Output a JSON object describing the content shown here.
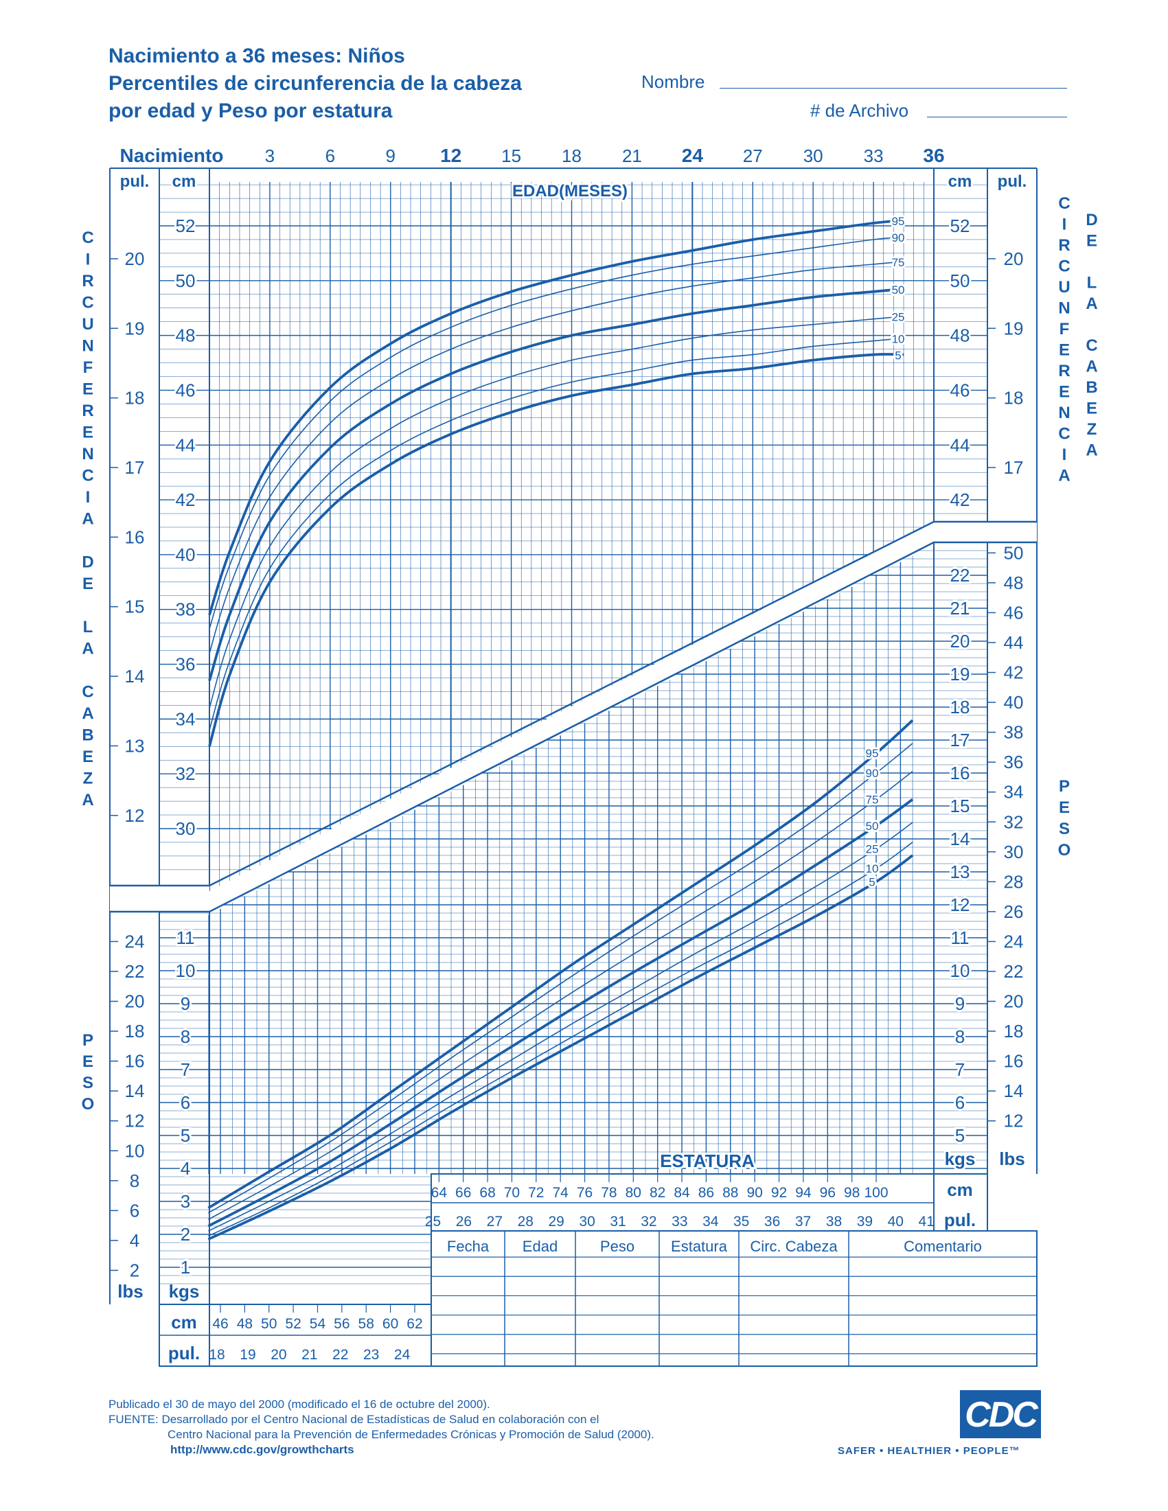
{
  "title": {
    "line1": "Nacimiento a 36 meses: Niños",
    "line2": "Percentiles de circunferencia de la cabeza",
    "line3": "por edad y Peso por estatura"
  },
  "fields": {
    "name_label": "Nombre",
    "record_label": "# de Archivo"
  },
  "age_axis": {
    "label": "EDAD(MESES)",
    "ticks": [
      "Nacimiento",
      "3",
      "6",
      "9",
      "12",
      "15",
      "18",
      "21",
      "24",
      "27",
      "30",
      "33",
      "36"
    ],
    "bold_ticks": [
      "Nacimiento",
      "12",
      "24",
      "36"
    ]
  },
  "unit_labels": {
    "cm": "cm",
    "in": "pul.",
    "kg": "kgs",
    "lb": "lbs"
  },
  "vertical_titles": {
    "left_head": "CIRCUNFERENCIA DE LA CABEZA",
    "left_weight": "PESO",
    "right_head_1": "CIRCUNFERENCIA",
    "right_head_2": "DE LA CABEZA",
    "right_weight": "PESO"
  },
  "length_axis": {
    "label": "ESTATURA",
    "cm_ticks": [
      "46",
      "48",
      "50",
      "52",
      "54",
      "56",
      "58",
      "60",
      "62",
      "64",
      "66",
      "68",
      "70",
      "72",
      "74",
      "76",
      "78",
      "80",
      "82",
      "84",
      "86",
      "88",
      "90",
      "92",
      "94",
      "96",
      "98",
      "100"
    ],
    "in_ticks": [
      "18",
      "19",
      "20",
      "21",
      "22",
      "23",
      "24",
      "25",
      "26",
      "27",
      "28",
      "29",
      "30",
      "31",
      "32",
      "33",
      "34",
      "35",
      "36",
      "37",
      "38",
      "39",
      "40",
      "41"
    ]
  },
  "record_table": {
    "headers": [
      "Fecha",
      "Edad",
      "Peso",
      "Estatura",
      "Circ. Cabeza",
      "Comentario"
    ],
    "rows": 6
  },
  "footer": {
    "line1": "Publicado el 30 de mayo del 2000 (modificado el 16 de octubre del 2000).",
    "line2": "FUENTE: Desarrollado por el Centro Nacional de Estadísticas de Salud en colaboración con el",
    "line3": "Centro Nacional para la Prevención de Enfermedades Crónicas y Promoción de Salud (2000).",
    "url": "http://www.cdc.gov/growthcharts"
  },
  "logo": {
    "text": "CDC",
    "tagline": "SAFER • HEALTHIER • PEOPLE™"
  },
  "colors": {
    "ink": "#1a5ea8",
    "grid": "#1a5ea8"
  },
  "chart_data": [
    {
      "type": "line",
      "title": "Percentiles de circunferencia de la cabeza por edad",
      "xlabel": "EDAD(MESES)",
      "ylabel": "CIRCUNFERENCIA DE LA CABEZA",
      "xlim": [
        0,
        36
      ],
      "ylim": [
        28,
        54
      ],
      "y_ticks_cm": [
        "30",
        "32",
        "34",
        "36",
        "38",
        "40",
        "42",
        "44",
        "46",
        "48",
        "50",
        "52"
      ],
      "y_ticks_in": [
        "12",
        "13",
        "14",
        "15",
        "16",
        "17",
        "18",
        "19",
        "20"
      ],
      "grid": true,
      "x": [
        0,
        1,
        3,
        6,
        9,
        12,
        15,
        18,
        21,
        24,
        27,
        30,
        33,
        34.5
      ],
      "series": [
        {
          "name": "95",
          "values": [
            37.8,
            40.1,
            43.4,
            46.1,
            47.7,
            48.8,
            49.6,
            50.2,
            50.7,
            51.1,
            51.5,
            51.8,
            52.1,
            52.2
          ]
        },
        {
          "name": "90",
          "values": [
            37.3,
            39.6,
            42.9,
            45.6,
            47.2,
            48.3,
            49.1,
            49.7,
            50.2,
            50.6,
            50.9,
            51.2,
            51.5,
            51.6
          ]
        },
        {
          "name": "75",
          "values": [
            36.4,
            38.8,
            42.1,
            44.8,
            46.4,
            47.5,
            48.3,
            48.9,
            49.4,
            49.8,
            50.1,
            50.4,
            50.6,
            50.7
          ]
        },
        {
          "name": "50",
          "values": [
            35.4,
            37.8,
            41.2,
            43.9,
            45.5,
            46.6,
            47.4,
            48.0,
            48.4,
            48.8,
            49.1,
            49.4,
            49.6,
            49.7
          ]
        },
        {
          "name": "25",
          "values": [
            34.4,
            36.9,
            40.3,
            43.0,
            44.6,
            45.7,
            46.5,
            47.1,
            47.5,
            47.9,
            48.2,
            48.4,
            48.6,
            48.7
          ]
        },
        {
          "name": "10",
          "values": [
            33.6,
            36.1,
            39.5,
            42.2,
            43.8,
            44.9,
            45.7,
            46.3,
            46.7,
            47.1,
            47.3,
            47.6,
            47.8,
            47.9
          ]
        },
        {
          "name": "5",
          "values": [
            33.0,
            35.6,
            39.0,
            41.7,
            43.3,
            44.4,
            45.2,
            45.8,
            46.2,
            46.6,
            46.8,
            47.1,
            47.3,
            47.3
          ]
        }
      ]
    },
    {
      "type": "line",
      "title": "Peso por estatura",
      "xlabel": "ESTATURA",
      "ylabel": "PESO",
      "xlim": [
        45,
        104
      ],
      "ylim": [
        0.5,
        23
      ],
      "y_ticks_kg": [
        "1",
        "2",
        "3",
        "4",
        "5",
        "6",
        "7",
        "8",
        "9",
        "10",
        "11",
        "12",
        "13",
        "14",
        "15",
        "16",
        "17",
        "18",
        "19",
        "20",
        "21",
        "22"
      ],
      "y_ticks_lb": [
        "2",
        "4",
        "6",
        "8",
        "10",
        "12",
        "14",
        "16",
        "18",
        "20",
        "22",
        "24",
        "26",
        "28",
        "30",
        "32",
        "34",
        "36",
        "38",
        "40",
        "42",
        "44",
        "46",
        "48",
        "50"
      ],
      "grid": true,
      "x": [
        45,
        50,
        55,
        60,
        65,
        70,
        75,
        80,
        85,
        90,
        95,
        100,
        103
      ],
      "series": [
        {
          "name": "95",
          "values": [
            2.8,
            3.9,
            5.0,
            6.3,
            7.6,
            8.9,
            10.2,
            11.4,
            12.6,
            13.8,
            15.1,
            16.6,
            17.6
          ]
        },
        {
          "name": "90",
          "values": [
            2.65,
            3.7,
            4.8,
            6.05,
            7.35,
            8.6,
            9.85,
            11.05,
            12.2,
            13.35,
            14.6,
            16.0,
            16.9
          ]
        },
        {
          "name": "75",
          "values": [
            2.45,
            3.45,
            4.5,
            5.7,
            6.95,
            8.15,
            9.35,
            10.5,
            11.6,
            12.7,
            13.9,
            15.2,
            16.05
          ]
        },
        {
          "name": "50",
          "values": [
            2.25,
            3.2,
            4.2,
            5.35,
            6.55,
            7.7,
            8.85,
            9.95,
            11.0,
            12.05,
            13.2,
            14.4,
            15.2
          ]
        },
        {
          "name": "25",
          "values": [
            2.1,
            3.0,
            3.95,
            5.05,
            6.2,
            7.3,
            8.4,
            9.45,
            10.5,
            11.5,
            12.55,
            13.7,
            14.5
          ]
        },
        {
          "name": "10",
          "values": [
            1.95,
            2.8,
            3.75,
            4.8,
            5.9,
            6.95,
            8.0,
            9.05,
            10.05,
            11.0,
            12.0,
            13.1,
            13.9
          ]
        },
        {
          "name": "5",
          "values": [
            1.85,
            2.7,
            3.6,
            4.6,
            5.7,
            6.75,
            7.75,
            8.75,
            9.75,
            10.7,
            11.65,
            12.7,
            13.5
          ]
        }
      ]
    }
  ]
}
